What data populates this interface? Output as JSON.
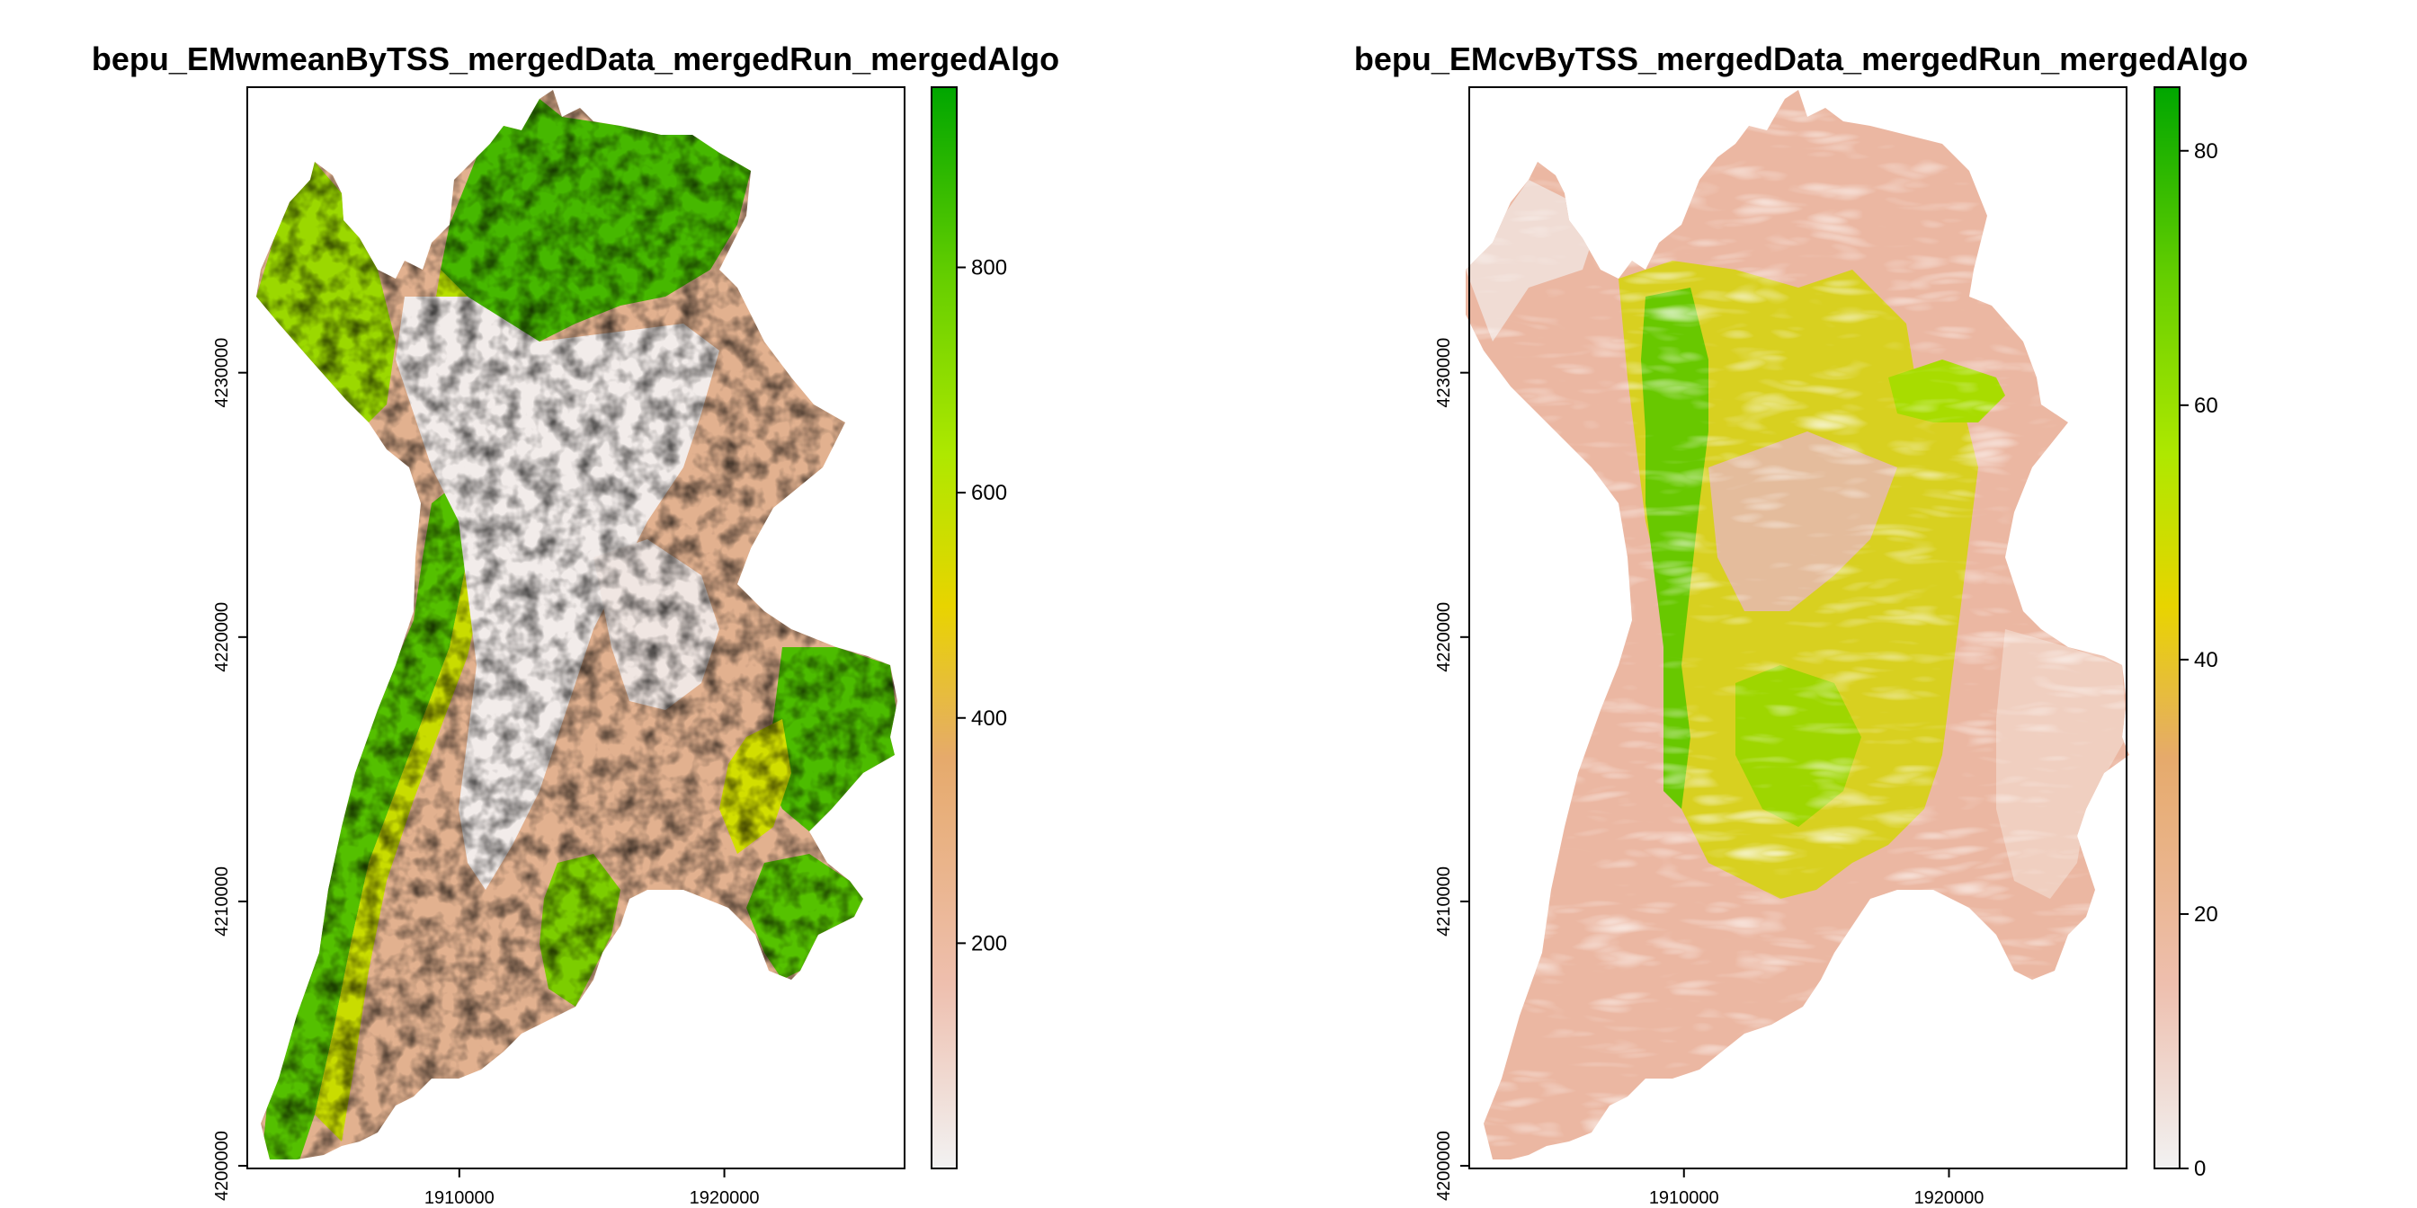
{
  "colors": {
    "ramp": [
      "#f2f2f2",
      "#eebfae",
      "#e6aa6b",
      "#e8d400",
      "#aee800",
      "#67cf00",
      "#00a600"
    ],
    "axis": "#000000"
  },
  "chart_data": [
    {
      "type": "heatmap",
      "title": "bepu_EMwmeanByTSS_mergedData_mergedRun_mergedAlgo",
      "x_ticks": [
        "1910000",
        "1920000"
      ],
      "y_ticks": [
        "4200000",
        "4210000",
        "4220000",
        "4230000"
      ],
      "xlim": [
        1902000,
        1926800
      ],
      "ylim": [
        4199900,
        4240800
      ],
      "legend": {
        "min": 0,
        "max": 960,
        "ticks": [
          {
            "value": 200,
            "label": "200"
          },
          {
            "value": 400,
            "label": "400"
          },
          {
            "value": 600,
            "label": "600"
          },
          {
            "value": 800,
            "label": "800"
          }
        ]
      },
      "grid": false,
      "legend_position": "right"
    },
    {
      "type": "heatmap",
      "title": "bepu_EMcvByTSS_mergedData_mergedRun_mergedAlgo",
      "x_ticks": [
        "1910000",
        "1920000"
      ],
      "y_ticks": [
        "4200000",
        "4210000",
        "4220000",
        "4230000"
      ],
      "xlim": [
        1901900,
        1926700
      ],
      "ylim": [
        4199900,
        4240800
      ],
      "legend": {
        "min": 0,
        "max": 85,
        "ticks": [
          {
            "value": 0,
            "label": "0"
          },
          {
            "value": 20,
            "label": "20"
          },
          {
            "value": 40,
            "label": "40"
          },
          {
            "value": 60,
            "label": "60"
          },
          {
            "value": 80,
            "label": "80"
          }
        ]
      },
      "grid": false,
      "legend_position": "right"
    }
  ]
}
